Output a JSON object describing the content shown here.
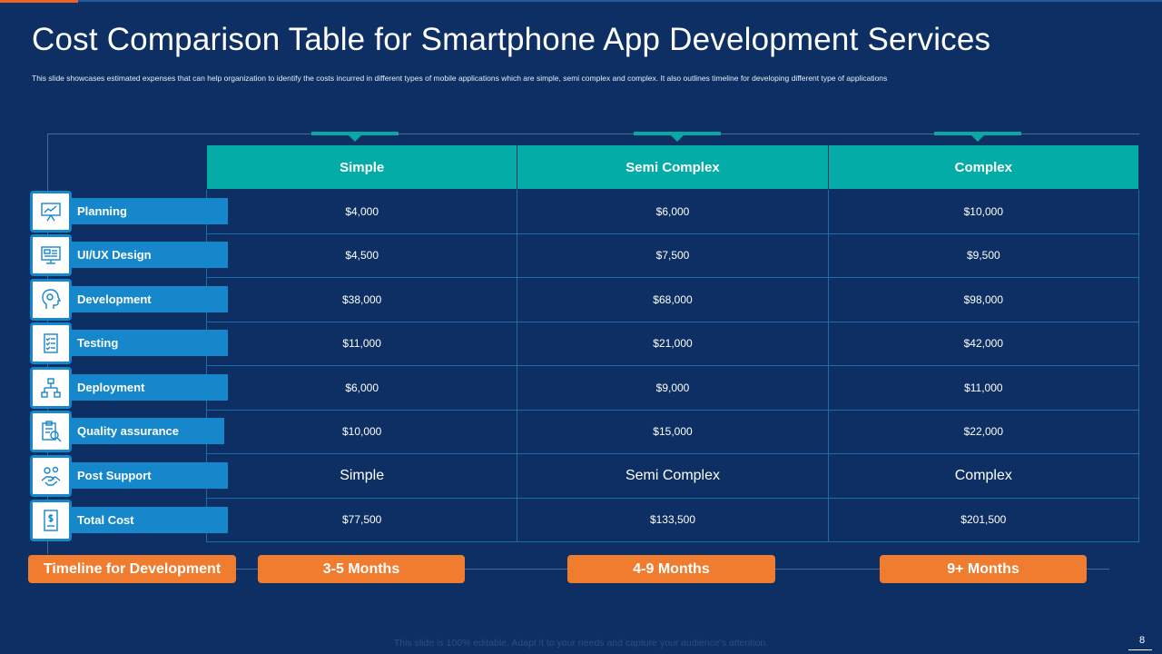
{
  "slide": {
    "title": "Cost Comparison Table for Smartphone App Development Services",
    "subtitle": "This slide showcases estimated expenses that can help organization  to identify the costs incurred in different types of mobile applications which are simple, semi complex and complex. It also outlines timeline for developing different type of applications",
    "footer_note": "This slide is 100% editable. Adapt it to your needs and capture your audience's attention.",
    "page_number": "8"
  },
  "colors": {
    "background": "#0d2f63",
    "header_teal": "#04aca7",
    "label_blue": "#1687cb",
    "timeline_orange": "#f07c30"
  },
  "table": {
    "columns": [
      "Simple",
      "Semi Complex",
      "Complex"
    ],
    "rows": [
      {
        "label": "Planning",
        "icon": "presentation-board-icon",
        "values": [
          "$4,000",
          "$6,000",
          "$10,000"
        ]
      },
      {
        "label": "UI/UX Design",
        "icon": "monitor-design-icon",
        "values": [
          "$4,500",
          "$7,500",
          "$9,500"
        ]
      },
      {
        "label": "Development",
        "icon": "head-gear-icon",
        "values": [
          "$38,000",
          "$68,000",
          "$98,000"
        ]
      },
      {
        "label": "Testing",
        "icon": "checklist-icon",
        "values": [
          "$11,000",
          "$21,000",
          "$42,000"
        ]
      },
      {
        "label": "Deployment",
        "icon": "hierarchy-icon",
        "values": [
          "$6,000",
          "$9,000",
          "$11,000"
        ]
      },
      {
        "label": "Quality assurance",
        "icon": "clipboard-search-icon",
        "values": [
          "$10,000",
          "$15,000",
          "$22,000"
        ]
      },
      {
        "label": "Post Support",
        "icon": "handshake-gear-icon",
        "values": [
          "Simple",
          "Semi Complex",
          "Complex"
        ]
      },
      {
        "label": "Total Cost",
        "icon": "dollar-document-icon",
        "values": [
          "$77,500",
          "$133,500",
          "$201,500"
        ]
      }
    ]
  },
  "timeline": {
    "label": "Timeline for Development",
    "values": [
      "3-5 Months",
      "4-9 Months",
      "9+ Months"
    ]
  }
}
